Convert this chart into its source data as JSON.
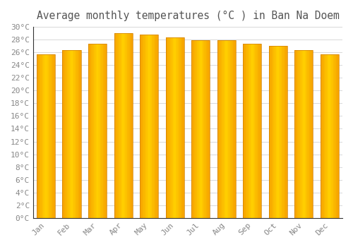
{
  "title": "Average monthly temperatures (°C ) in Ban Na Doem",
  "months": [
    "Jan",
    "Feb",
    "Mar",
    "Apr",
    "May",
    "Jun",
    "Jul",
    "Aug",
    "Sep",
    "Oct",
    "Nov",
    "Dec"
  ],
  "values": [
    25.7,
    26.4,
    27.4,
    29.0,
    28.8,
    28.3,
    27.9,
    27.9,
    27.4,
    27.0,
    26.4,
    25.7
  ],
  "bar_color_center": "#FFD000",
  "bar_color_edge": "#F5A000",
  "background_color": "#FFFFFF",
  "grid_color": "#D8D8D8",
  "tick_label_color": "#888888",
  "title_color": "#555555",
  "ylim": [
    0,
    30
  ],
  "ytick_step": 2,
  "title_fontsize": 10.5,
  "tick_fontsize": 8
}
